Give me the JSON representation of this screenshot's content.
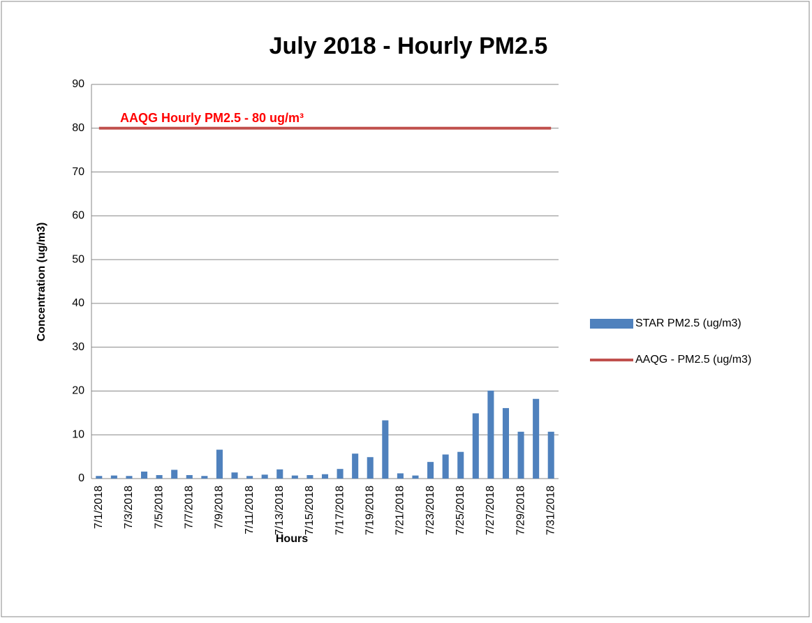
{
  "chart_data": {
    "type": "bar",
    "title": "July 2018 - Hourly PM2.5",
    "x_label": "Hours",
    "y_label": "Concentration (ug/m3)",
    "annotation": "AAQG Hourly PM2.5 - 80 ug/m³",
    "categories": [
      "7/1/2018",
      null,
      "7/3/2018",
      null,
      "7/5/2018",
      null,
      "7/7/2018",
      null,
      "7/9/2018",
      null,
      "7/11/2018",
      null,
      "7/13/2018",
      null,
      "7/15/2018",
      null,
      "7/17/2018",
      null,
      "7/19/2018",
      null,
      "7/21/2018",
      null,
      "7/23/2018",
      null,
      "7/25/2018",
      null,
      "7/27/2018",
      null,
      "7/29/2018",
      null,
      "7/31/2018"
    ],
    "series": [
      {
        "name": "STAR PM2.5 (ug/m3)",
        "type": "bar",
        "color": "#4f81bd",
        "values": [
          0.6,
          0.7,
          0.6,
          1.6,
          0.8,
          2.0,
          0.8,
          0.6,
          6.6,
          1.4,
          0.6,
          0.9,
          2.1,
          0.7,
          0.8,
          1.0,
          2.2,
          5.7,
          4.9,
          13.3,
          1.2,
          0.7,
          3.8,
          5.5,
          6.1,
          14.9,
          20.1,
          16.1,
          10.7,
          18.2,
          10.7
        ]
      },
      {
        "name": "AAQG - PM2.5 (ug/m3)",
        "type": "line",
        "color": "#c0504d",
        "values": [
          80,
          80,
          80,
          80,
          80,
          80,
          80,
          80,
          80,
          80,
          80,
          80,
          80,
          80,
          80,
          80,
          80,
          80,
          80,
          80,
          80,
          80,
          80,
          80,
          80,
          80,
          80,
          80,
          80,
          80,
          80
        ]
      }
    ],
    "ylim": [
      0,
      90
    ],
    "yticks": [
      0,
      10,
      20,
      30,
      40,
      50,
      60,
      70,
      80,
      90
    ],
    "grid": true,
    "legend": "right"
  }
}
